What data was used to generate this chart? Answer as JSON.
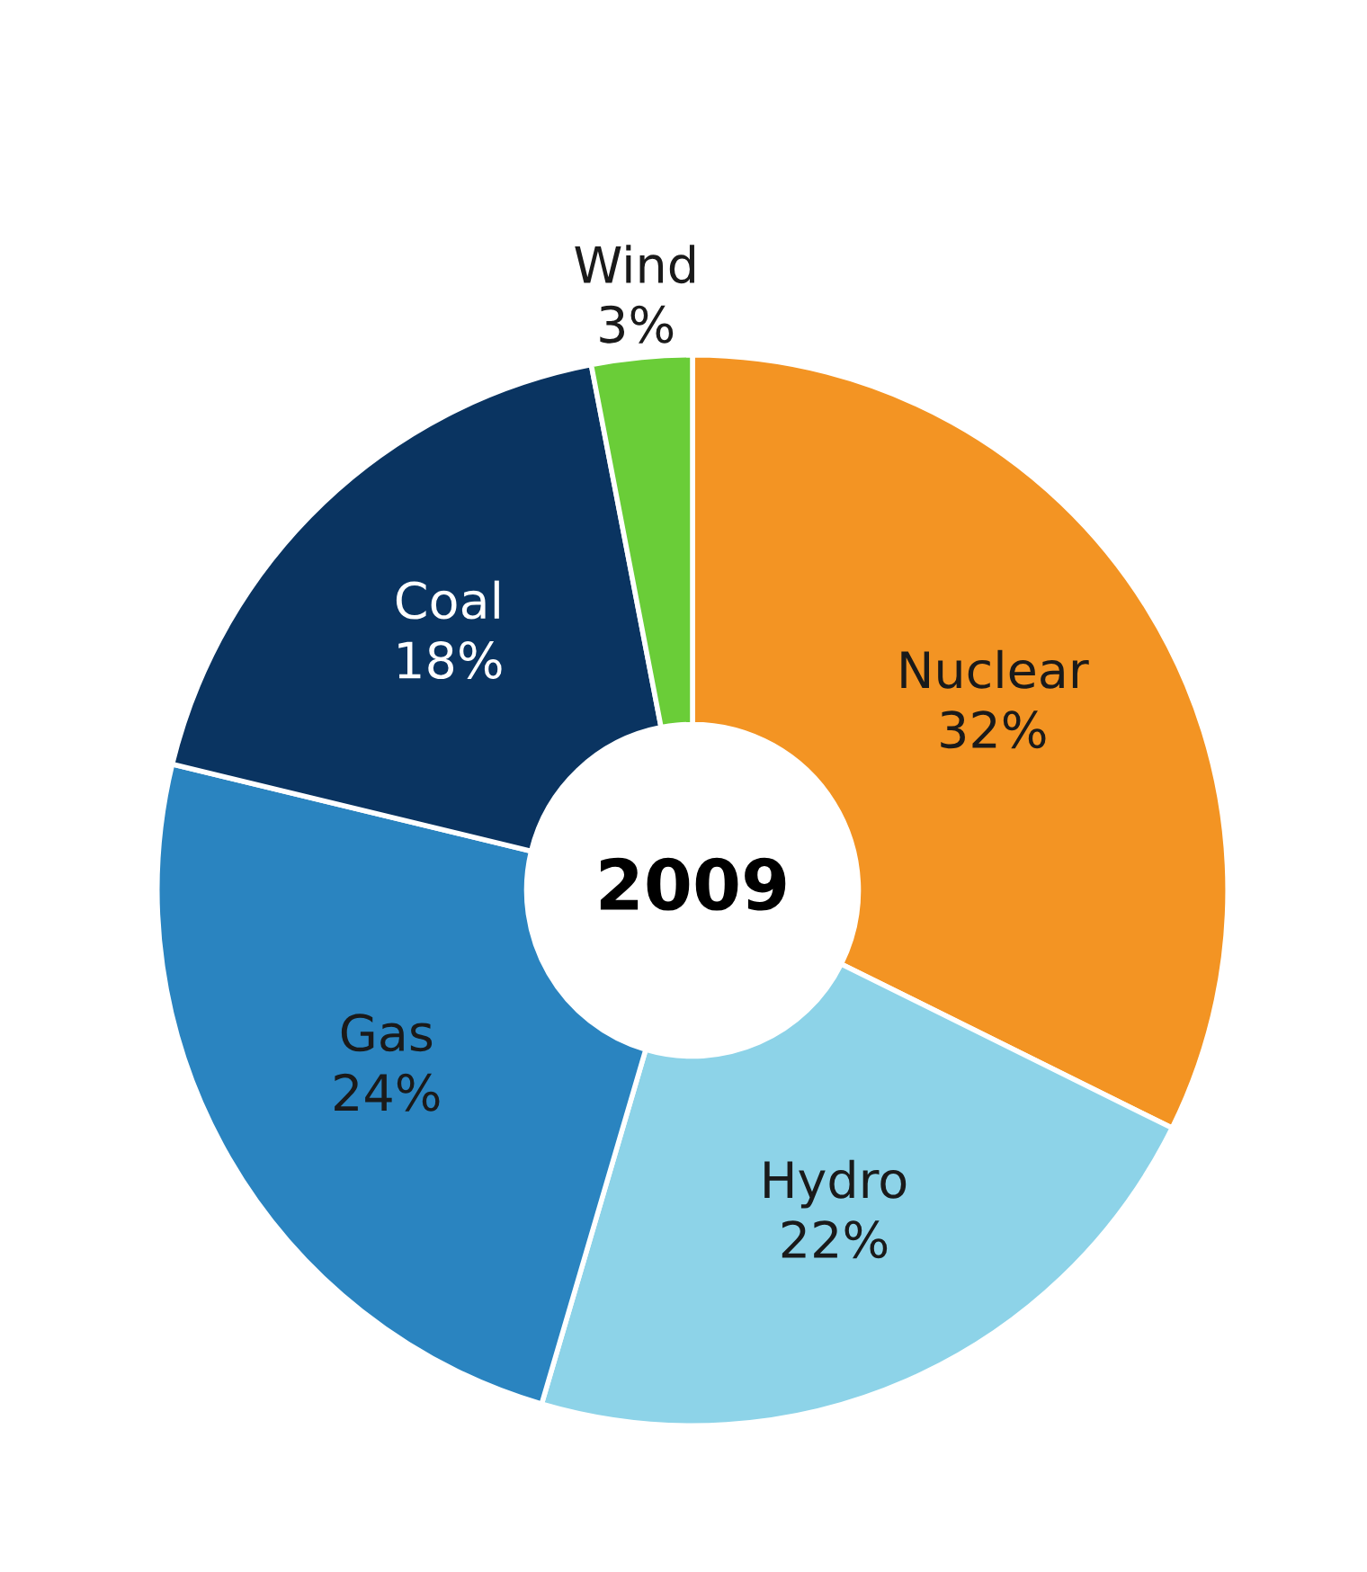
{
  "chart_data": {
    "type": "donut",
    "title": "2009",
    "categories": [
      "Nuclear",
      "Hydro",
      "Gas",
      "Coal",
      "Wind"
    ],
    "values": [
      32,
      22,
      24,
      18,
      3
    ],
    "value_labels": [
      "32%",
      "22%",
      "24%",
      "18%",
      "3%"
    ],
    "colors": [
      "#f39423",
      "#8dd3e8",
      "#2a84c0",
      "#0a3461",
      "#6acd38"
    ],
    "legend": false
  }
}
